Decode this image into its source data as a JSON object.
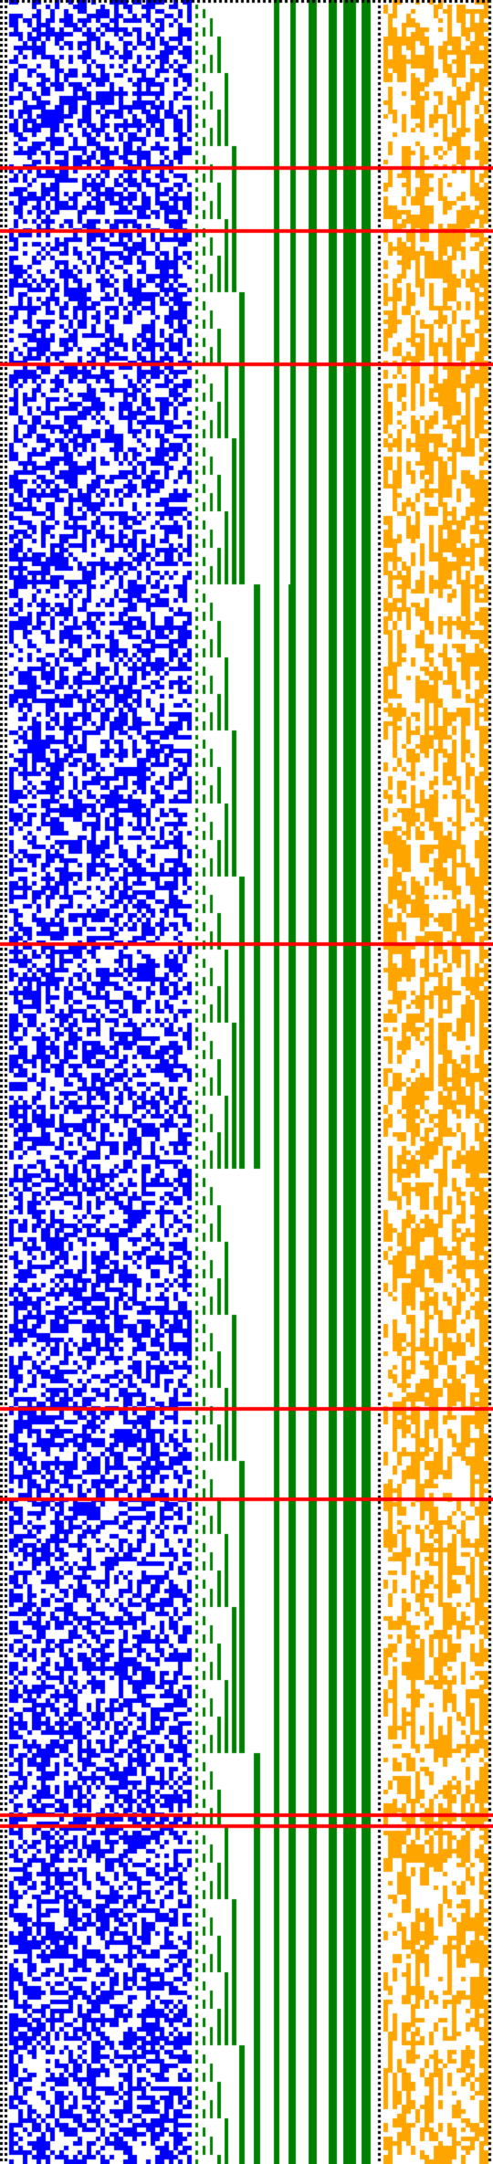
{
  "colors": {
    "background": "#ffffff",
    "left_panel": "#0000ff",
    "counter_bars": "#008000",
    "right_panel": "#ffa500",
    "separators": "#ff0000",
    "dotted_rules": "#000000"
  },
  "panels": [
    "blue-noise-grid",
    "green-counter-bars",
    "orange-noise-grid"
  ],
  "separator_count": 7
}
